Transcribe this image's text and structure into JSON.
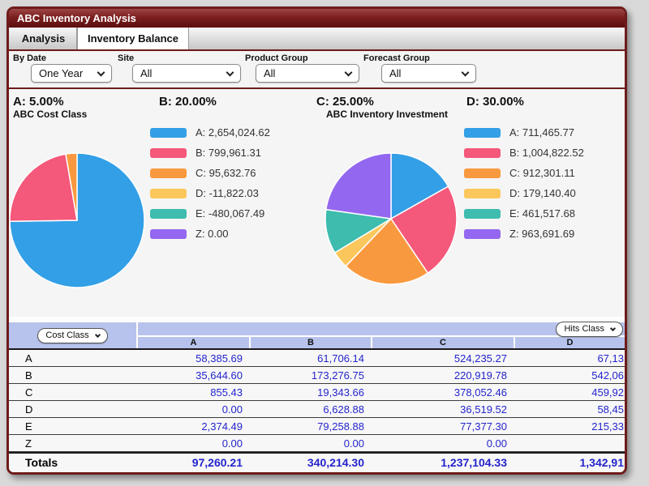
{
  "window": {
    "title": "ABC Inventory Analysis"
  },
  "tabs": [
    {
      "label": "Analysis",
      "active": false
    },
    {
      "label": "Inventory Balance",
      "active": true
    }
  ],
  "filters": [
    {
      "label": "By Date",
      "value": "One Year"
    },
    {
      "label": "Site",
      "value": "All"
    },
    {
      "label": "Product Group",
      "value": "All"
    },
    {
      "label": "Forecast Group",
      "value": "All"
    }
  ],
  "class_headers": [
    "A: 5.00%",
    "B: 20.00%",
    "C: 25.00%",
    "D: 30.00%"
  ],
  "chart_data": [
    {
      "type": "pie",
      "title": "ABC Cost Class",
      "labels": [
        "A",
        "B",
        "C",
        "D",
        "E",
        "Z"
      ],
      "values": [
        2654024.62,
        799961.31,
        95632.76,
        -11822.03,
        -480067.49,
        0
      ],
      "display": [
        "A: 2,654,024.62",
        "B: 799,961.31",
        "C: 95,632.76",
        "D: -11,822.03",
        "E: -480,067.49",
        "Z: 0.00"
      ],
      "colors": [
        "#339FE6",
        "#F4587A",
        "#F9993F",
        "#FBC75C",
        "#3EBCAE",
        "#9467F0"
      ],
      "legend_position": "right",
      "note": "only positive values drawn as slices"
    },
    {
      "type": "pie",
      "title": "ABC Inventory Investment",
      "labels": [
        "A",
        "B",
        "C",
        "D",
        "E",
        "Z"
      ],
      "values": [
        711465.77,
        1004822.52,
        912301.11,
        179140.4,
        461517.68,
        963691.69
      ],
      "display": [
        "A: 711,465.77",
        "B: 1,004,822.52",
        "C: 912,301.11",
        "D: 179,140.40",
        "E: 461,517.68",
        "Z: 963,691.69"
      ],
      "colors": [
        "#339FE6",
        "#F4587A",
        "#F9993F",
        "#FBC75C",
        "#3EBCAE",
        "#9467F0"
      ],
      "legend_position": "right"
    }
  ],
  "table": {
    "left_dropdown": "Cost Class",
    "right_dropdown": "Hits Class",
    "columns": [
      "A",
      "B",
      "C",
      "D"
    ],
    "rows": [
      {
        "label": "A",
        "values": [
          "58,385.69",
          "61,706.14",
          "524,235.27",
          "67,13"
        ]
      },
      {
        "label": "B",
        "values": [
          "35,644.60",
          "173,276.75",
          "220,919.78",
          "542,06"
        ]
      },
      {
        "label": "C",
        "values": [
          "855.43",
          "19,343.66",
          "378,052.46",
          "459,92"
        ]
      },
      {
        "label": "D",
        "values": [
          "0.00",
          "6,628.88",
          "36,519.52",
          "58,45"
        ]
      },
      {
        "label": "E",
        "values": [
          "2,374.49",
          "79,258.88",
          "77,377.30",
          "215,33"
        ]
      },
      {
        "label": "Z",
        "values": [
          "0.00",
          "0.00",
          "0.00",
          ""
        ]
      }
    ],
    "totals": {
      "label": "Totals",
      "values": [
        "97,260.21",
        "340,214.30",
        "1,237,104.33",
        "1,342,91"
      ]
    }
  },
  "colors": {
    "accent_red": "#6F1B1B",
    "table_header_blue": "#B7C3EC",
    "value_text_blue": "#2424CC"
  }
}
